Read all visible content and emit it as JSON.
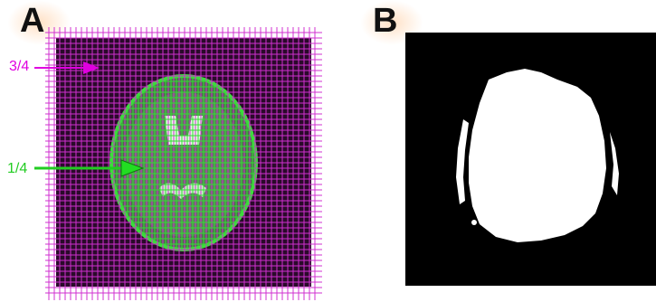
{
  "panels": {
    "a": {
      "letter": "A"
    },
    "b": {
      "letter": "B"
    }
  },
  "annotations": {
    "outer_label": "3/4",
    "inner_label": "1/4"
  },
  "colors": {
    "outer_label": "#e000e0",
    "inner_label": "#22dd22",
    "outer_grid": "#d030d0",
    "inner_grid": "#33dd33",
    "background_dark": "#2a0a2a",
    "mask_white": "#ffffff",
    "mask_black": "#000000"
  }
}
